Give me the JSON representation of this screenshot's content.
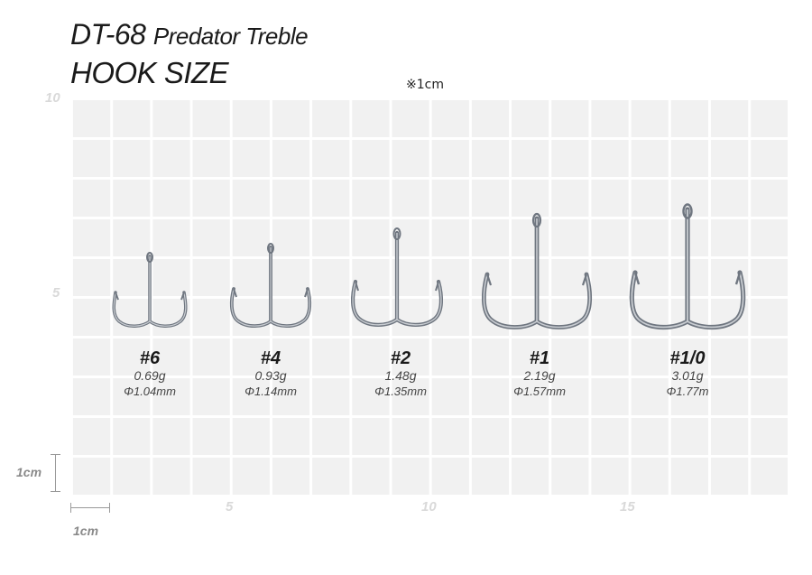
{
  "header": {
    "model": "DT-68",
    "description": "Predator Treble",
    "subtitle": "HOOK SIZE",
    "scale_note": "※1cm"
  },
  "grid": {
    "y_labels": [
      "10",
      "5"
    ],
    "x_labels": [
      "5",
      "10",
      "15"
    ]
  },
  "scale": {
    "vertical": "1cm",
    "horizontal": "1cm"
  },
  "hooks": [
    {
      "size": "#6",
      "weight": "0.69g",
      "diameter": "Φ1.04mm"
    },
    {
      "size": "#4",
      "weight": "0.93g",
      "diameter": "Φ1.14mm"
    },
    {
      "size": "#2",
      "weight": "1.48g",
      "diameter": "Φ1.35mm"
    },
    {
      "size": "#1",
      "weight": "2.19g",
      "diameter": "Φ1.57mm"
    },
    {
      "size": "#1/0",
      "weight": "3.01g",
      "diameter": "Φ1.77m"
    }
  ]
}
